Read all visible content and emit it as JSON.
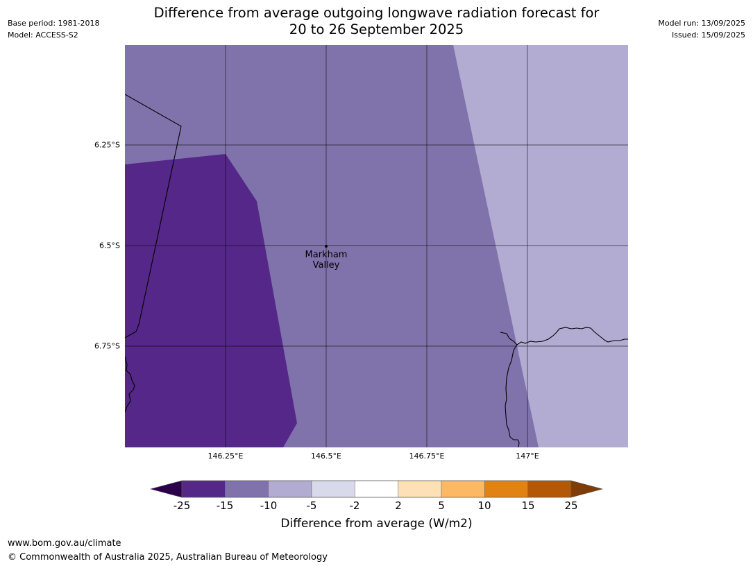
{
  "header": {
    "title_line1": "Difference from average outgoing longwave radiation forecast for",
    "title_line2": "20 to 26 September 2025",
    "base_period": "Base period: 1981-2018",
    "model": "Model: ACCESS-S2",
    "model_run": "Model run: 13/09/2025",
    "issued": "Issued: 15/09/2025"
  },
  "map": {
    "lat_labels": [
      "6.25°S",
      "6.5°S",
      "6.75°S"
    ],
    "lon_labels": [
      "146.25°E",
      "146.5°E",
      "146.75°E",
      "147°E"
    ],
    "place": {
      "line1": "Markham",
      "line2": "Valley"
    },
    "colors": {
      "band_minus_25_to_minus_15": "#542788",
      "band_minus_15_to_minus_10": "#8073ac",
      "band_minus_10_to_minus_5": "#b2abd2",
      "gridline": "#000000",
      "coastline": "#000000"
    }
  },
  "colorbar": {
    "ticks": [
      "-25",
      "-15",
      "-10",
      "-5",
      "-2",
      "2",
      "5",
      "10",
      "15",
      "25"
    ],
    "colors": [
      "#542788",
      "#8073ac",
      "#b2abd2",
      "#d8daeb",
      "#ffffff",
      "#fee0b6",
      "#fdb863",
      "#e08214",
      "#b35806"
    ],
    "under_color": "#2d004b",
    "over_color": "#7f3b08",
    "label": "Difference from average (W/m2)"
  },
  "footer": {
    "url": "www.bom.gov.au/climate",
    "copyright": "© Commonwealth of Australia 2025, Australian Bureau of Meteorology"
  }
}
